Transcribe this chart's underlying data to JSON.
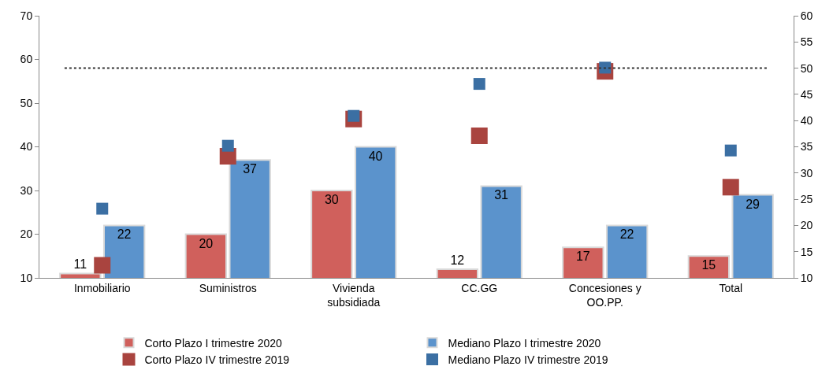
{
  "chart_data": {
    "type": "bar",
    "categories": [
      "Inmobiliario",
      "Suministros",
      "Vivienda\nsubsidiada",
      "CC.GG",
      "Concesiones y\nOO.PP.",
      "Total"
    ],
    "series": [
      {
        "name": "Corto Plazo I trimestre 2020",
        "color": "#d0605c",
        "values": [
          11,
          20,
          30,
          12,
          17,
          15
        ],
        "value_labels": [
          "11",
          "20",
          "30",
          "12",
          "17",
          "15"
        ]
      },
      {
        "name": "Mediano Plazo I trimestre 2020",
        "color": "#5b93cc",
        "values": [
          22,
          37,
          40,
          31,
          22,
          29
        ],
        "value_labels": [
          "22",
          "37",
          "40",
          "31",
          "22",
          "29"
        ]
      },
      {
        "name": "Corto Plazo IV trimestre 2019",
        "type": "scatter",
        "axis": "y2",
        "color": "#a9443f",
        "values": [
          12.4,
          33.2,
          40.3,
          37.1,
          49.4,
          27.3
        ]
      },
      {
        "name": "Mediano Plazo IV trimestre 2019",
        "type": "scatter",
        "axis": "y2",
        "color": "#3b6fa3",
        "values": [
          23.2,
          35.2,
          40.9,
          47.0,
          50.1,
          34.3
        ]
      }
    ],
    "ylim": [
      10,
      70
    ],
    "yticks": [
      10,
      20,
      30,
      40,
      50,
      60,
      70
    ],
    "y2lim": [
      10,
      60
    ],
    "y2ticks": [
      10,
      15,
      20,
      25,
      30,
      35,
      40,
      45,
      50,
      55,
      60
    ],
    "ref_lines": [
      {
        "axis": "y2",
        "value": 50,
        "color": "#333333",
        "line_style": "dotted"
      }
    ],
    "marker": "square",
    "legend": "bottom"
  }
}
